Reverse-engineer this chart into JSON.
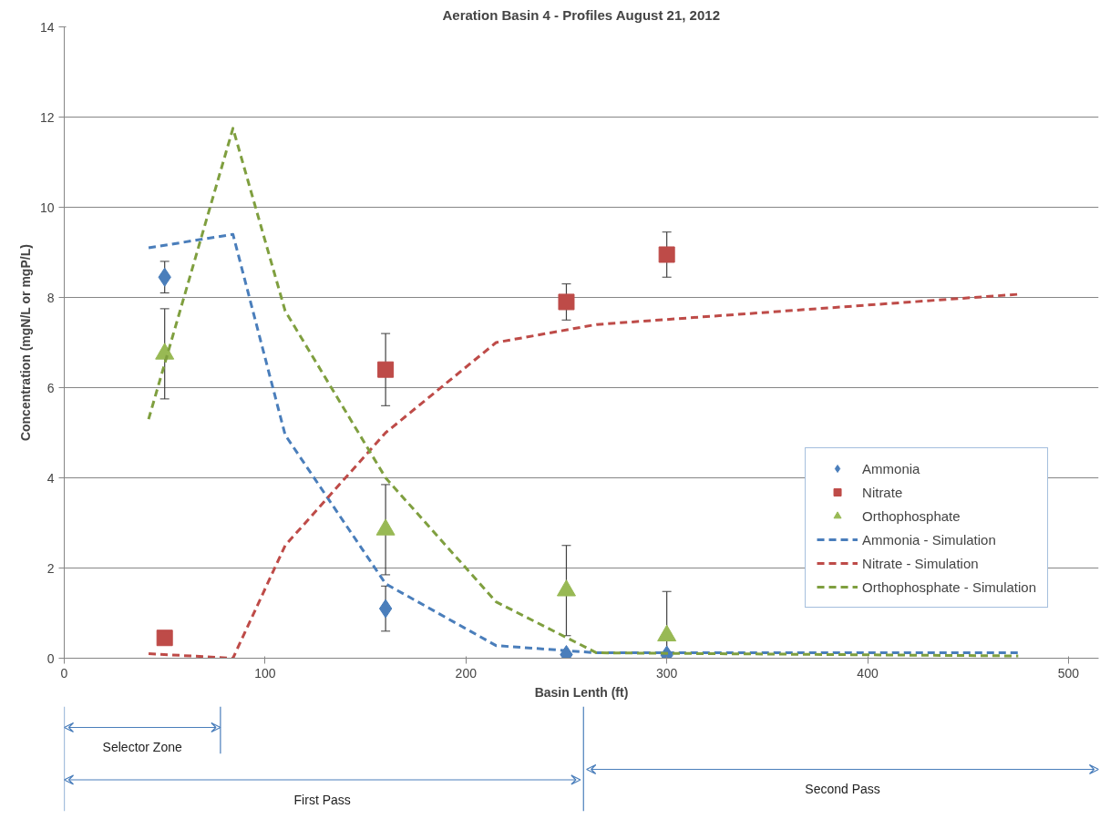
{
  "chart_data": {
    "type": "scatter",
    "title": "Aeration Basin 4 - Profiles August 21, 2012",
    "xlabel": "Basin Lenth (ft)",
    "ylabel": "Concentration (mgN/L or mgP/L)",
    "xlim": [
      0,
      515
    ],
    "ylim": [
      0,
      14
    ],
    "xticks": [
      0,
      100,
      200,
      300,
      400,
      500
    ],
    "yticks": [
      0,
      2,
      4,
      6,
      8,
      10,
      12,
      14
    ],
    "grid": "y",
    "legend": "right",
    "series": [
      {
        "name": "Ammonia",
        "marker": "diamond",
        "color": "#4a7ebb",
        "x": [
          50,
          160,
          250,
          300
        ],
        "values": [
          8.45,
          1.1,
          0.08,
          0.07
        ],
        "errors": [
          0.35,
          0.5,
          null,
          null
        ]
      },
      {
        "name": "Nitrate",
        "marker": "square",
        "color": "#be4b48",
        "x": [
          50,
          160,
          250,
          300
        ],
        "values": [
          0.45,
          6.4,
          7.9,
          8.95
        ],
        "errors": [
          null,
          0.8,
          0.4,
          0.5
        ]
      },
      {
        "name": "Orthophosphate",
        "marker": "triangle",
        "color": "#98b954",
        "x": [
          50,
          160,
          250,
          300
        ],
        "values": [
          6.75,
          2.85,
          1.5,
          0.5
        ],
        "errors": [
          1.0,
          1.0,
          1.0,
          [
            0,
            1.48
          ]
        ]
      },
      {
        "name": "Ammonia - Simulation",
        "type": "line",
        "line_style": "dashed",
        "color": "#4a7ebb",
        "x": [
          42,
          84,
          110,
          160,
          215,
          265,
          475
        ],
        "values": [
          9.1,
          9.4,
          4.95,
          1.65,
          0.28,
          0.12,
          0.12
        ]
      },
      {
        "name": "Nitrate - Simulation",
        "type": "line",
        "line_style": "dashed",
        "color": "#be4b48",
        "x": [
          42,
          84,
          110,
          160,
          215,
          265,
          475
        ],
        "values": [
          0.1,
          0.0,
          2.5,
          5.0,
          7.0,
          7.4,
          8.07
        ]
      },
      {
        "name": "Orthophosphate - Simulation",
        "type": "line",
        "line_style": "dashed",
        "color": "#7f9f3f",
        "x": [
          42,
          84,
          110,
          160,
          215,
          265,
          475
        ],
        "values": [
          5.3,
          11.75,
          7.7,
          4.0,
          1.25,
          0.12,
          0.05
        ]
      }
    ],
    "annotations": [
      "Selector Zone",
      "First Pass",
      "Second Pass"
    ]
  }
}
